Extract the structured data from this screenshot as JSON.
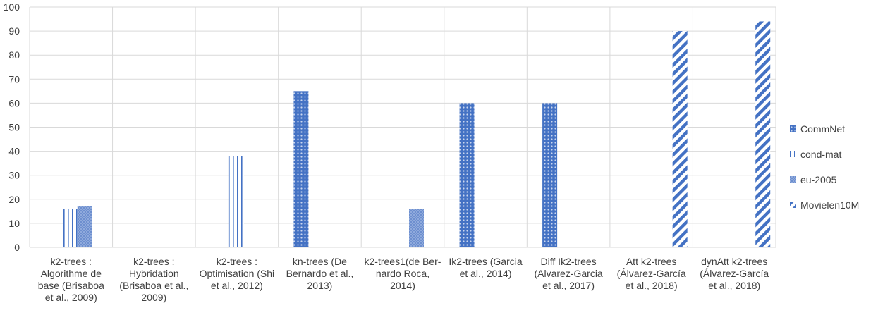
{
  "chart_data": {
    "type": "bar",
    "categories": [
      "k2-trees : Algorithme de base (Brisaboa et al., 2009)",
      "k2-trees : Hybridation (Brisaboa et al., 2009)",
      "k2-trees : Optimisation (Shi et al., 2012)",
      "kn-trees (De Bernardo et al., 2013)",
      "k2-trees1(de Ber- nardo Roca, 2014)",
      "Ik2-trees (Garcia et al., 2014)",
      "Diff Ik2-trees (Alvarez-Garcia et al., 2017)",
      "Att k2-trees (Álvarez-García et al., 2018)",
      "dynAtt k2-trees (Álvarez-García et al., 2018)"
    ],
    "series": [
      {
        "name": "CommNet",
        "values": [
          null,
          null,
          null,
          65,
          null,
          60,
          60,
          null,
          null
        ],
        "color": "#4472c4"
      },
      {
        "name": "cond-mat",
        "values": [
          16,
          null,
          38,
          null,
          null,
          null,
          null,
          null,
          null
        ],
        "color": "#4472c4"
      },
      {
        "name": "eu-2005",
        "values": [
          17,
          null,
          null,
          null,
          16,
          null,
          null,
          null,
          null
        ],
        "color": "#8faadc"
      },
      {
        "name": "Movielen10M",
        "values": [
          null,
          null,
          null,
          null,
          null,
          null,
          null,
          90,
          94
        ],
        "color": "#4472c4"
      }
    ],
    "yticks": [
      "0",
      "10",
      "20",
      "30",
      "40",
      "50",
      "60",
      "70",
      "80",
      "90",
      "100"
    ],
    "ylim": [
      0,
      100
    ],
    "grid": true,
    "legend_position": "right"
  }
}
